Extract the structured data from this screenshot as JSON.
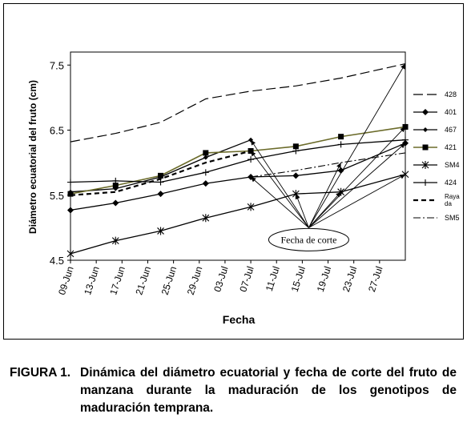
{
  "chart_data": {
    "type": "line",
    "ylabel": "Diámetro ecuatorial del fruto (cm)",
    "xlabel": "Fecha",
    "ylim": [
      4.5,
      7.7
    ],
    "yticks": [
      4.5,
      5.5,
      6.5,
      7.5
    ],
    "ytick_labels": [
      "4.5",
      "5.5",
      "6.5",
      "7.5"
    ],
    "xlim": [
      0,
      52
    ],
    "xticks": [
      0,
      4,
      8,
      12,
      16,
      20,
      24,
      28,
      32,
      36,
      40,
      44,
      48
    ],
    "xtick_labels": [
      "09-Jun",
      "13-Jun",
      "17-Jun",
      "21-Jun",
      "25-Jun",
      "29-Jun",
      "03-Jul",
      "07-Jul",
      "11-Jul",
      "15-Jul",
      "19-Jul",
      "23-Jul",
      "27-Jul"
    ],
    "legend_position": "right",
    "series": [
      {
        "name": "428",
        "style": "longdash",
        "marker": "none",
        "x": [
          0,
          7,
          14,
          21,
          28,
          35,
          42,
          52
        ],
        "y": [
          6.32,
          6.45,
          6.62,
          6.98,
          7.1,
          7.18,
          7.3,
          7.52
        ]
      },
      {
        "name": "401",
        "style": "solid",
        "marker": "diamond",
        "x": [
          0,
          7,
          14,
          21,
          28,
          35,
          42,
          52
        ],
        "y": [
          5.27,
          5.38,
          5.52,
          5.68,
          5.78,
          5.8,
          5.88,
          6.3
        ]
      },
      {
        "name": "467",
        "style": "solid",
        "marker": "diamond-small",
        "x": [
          0,
          7,
          14,
          21,
          28
        ],
        "y": [
          5.55,
          5.6,
          5.78,
          6.08,
          6.35
        ]
      },
      {
        "name": "421",
        "style": "solid-olive",
        "marker": "square",
        "x": [
          0,
          7,
          14,
          21,
          28,
          35,
          42,
          52
        ],
        "y": [
          5.52,
          5.65,
          5.8,
          6.15,
          6.18,
          6.25,
          6.4,
          6.55
        ]
      },
      {
        "name": "SM4",
        "style": "solid",
        "marker": "star",
        "x": [
          0,
          7,
          14,
          21,
          28,
          35,
          42,
          52
        ],
        "y": [
          4.6,
          4.8,
          4.95,
          5.15,
          5.32,
          5.52,
          5.55,
          5.82
        ]
      },
      {
        "name": "424",
        "style": "solid",
        "marker": "plus",
        "x": [
          0,
          7,
          14,
          21,
          28,
          35,
          42,
          52
        ],
        "y": [
          5.7,
          5.72,
          5.7,
          5.85,
          6.05,
          6.18,
          6.28,
          6.35
        ]
      },
      {
        "name": "Raya\nda",
        "style": "shortdash",
        "marker": "none",
        "x": [
          0,
          7,
          14,
          21,
          28
        ],
        "y": [
          5.5,
          5.55,
          5.75,
          6.0,
          6.18
        ]
      },
      {
        "name": "SM5",
        "style": "dashdot",
        "marker": "none",
        "x": [
          28,
          35,
          42,
          52
        ],
        "y": [
          5.78,
          5.88,
          6.0,
          6.15
        ]
      }
    ],
    "annotations": [
      {
        "text": "Fecha de corte",
        "x": 37,
        "y": 5.0,
        "targets": [
          [
            28,
            6.35
          ],
          [
            28,
            6.18
          ],
          [
            28,
            5.78
          ],
          [
            35,
            5.52
          ],
          [
            42,
            5.55
          ],
          [
            42,
            6.0
          ],
          [
            52,
            6.55
          ],
          [
            52,
            6.3
          ],
          [
            52,
            5.82
          ],
          [
            52,
            7.52
          ]
        ]
      }
    ]
  },
  "caption": {
    "label": "FIGURA 1.",
    "text": "Dinámica del diámetro ecuatorial y fecha de corte del fruto de manzana durante la maduración de los genotipos de maduración temprana."
  },
  "colors": {
    "line": "#000000",
    "olive": "#6b6b2a"
  }
}
